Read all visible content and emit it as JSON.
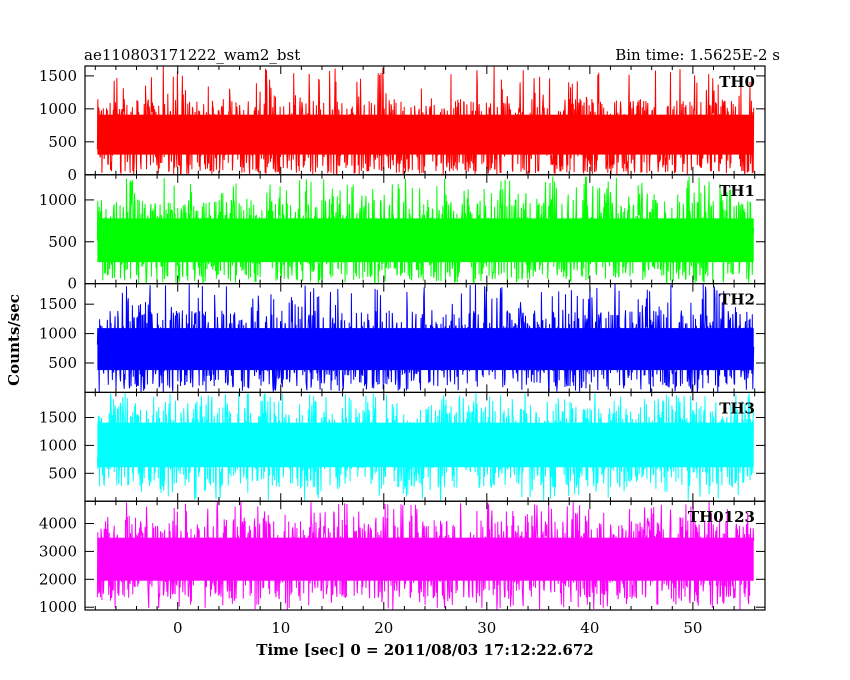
{
  "chart_data": {
    "type": "line",
    "title": "ae110803171222_wam2_bst",
    "subtitle": "Bin time: 1.5625E-2 s",
    "xlabel": "Time [sec] 0 = 2011/08/03 17:12:22.672",
    "ylabel": "Counts/sec",
    "xlim": [
      -9,
      57
    ],
    "data_x_range": [
      -7.8,
      55.9
    ],
    "xticks": [
      0,
      10,
      20,
      30,
      40,
      50
    ],
    "xtick_labels": [
      "0",
      "10",
      "20",
      "30",
      "40",
      "50"
    ],
    "grid": false,
    "panels": [
      {
        "name": "TH0",
        "color": "#ff0000",
        "ylim": [
          0,
          1650
        ],
        "yticks": [
          0,
          500,
          1000,
          1500
        ],
        "ytick_labels": [
          "0",
          "500",
          "1000",
          "1500"
        ],
        "mean": 620,
        "typical_min": 50,
        "typical_max": 1150,
        "peak_max": 1650
      },
      {
        "name": "TH1",
        "color": "#00ff00",
        "ylim": [
          0,
          1300
        ],
        "yticks": [
          0,
          500,
          1000
        ],
        "ytick_labels": [
          "0",
          "500",
          "1000"
        ],
        "mean": 510,
        "typical_min": 50,
        "typical_max": 1000,
        "peak_max": 1280
      },
      {
        "name": "TH2",
        "color": "#0000ff",
        "ylim": [
          0,
          1850
        ],
        "yticks": [
          500,
          1000,
          1500
        ],
        "ytick_labels": [
          "500",
          "1000",
          "1500"
        ],
        "mean": 720,
        "typical_min": 100,
        "typical_max": 1400,
        "peak_max": 1850
      },
      {
        "name": "TH3",
        "color": "#00ffff",
        "ylim": [
          0,
          1950
        ],
        "yticks": [
          500,
          1000,
          1500
        ],
        "ytick_labels": [
          "500",
          "1000",
          "1500"
        ],
        "mean": 1050,
        "typical_min": 250,
        "typical_max": 1700,
        "peak_max": 1950
      },
      {
        "name": "TH0123",
        "color": "#ff00ff",
        "ylim": [
          900,
          4800
        ],
        "yticks": [
          1000,
          2000,
          3000,
          4000
        ],
        "ytick_labels": [
          "1000",
          "2000",
          "3000",
          "4000"
        ],
        "mean": 2750,
        "typical_min": 1300,
        "typical_max": 4100,
        "peak_max": 4800
      }
    ]
  }
}
